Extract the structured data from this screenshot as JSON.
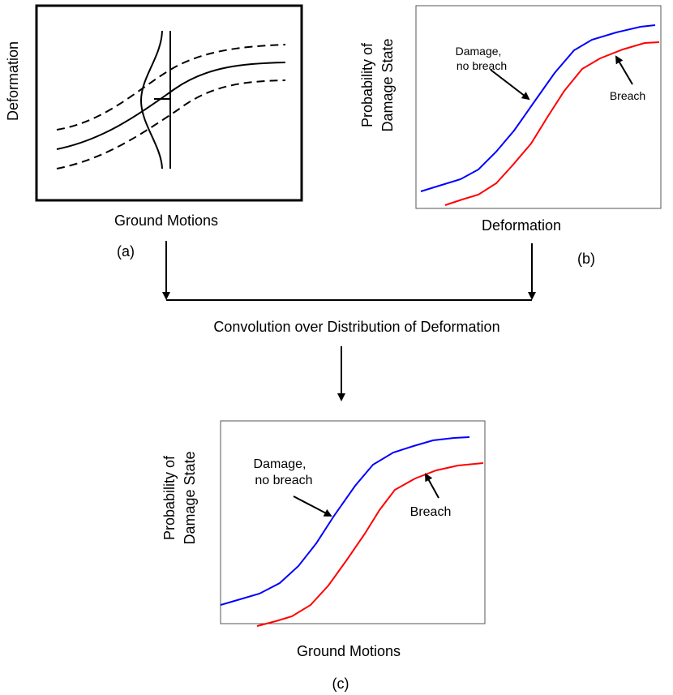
{
  "panel_a": {
    "ylabel": "Deformation",
    "xlabel": "Ground Motions",
    "tag": "(a)"
  },
  "panel_b": {
    "ylabel_line1": "Probability of",
    "ylabel_line2": "Damage State",
    "xlabel": "Deformation",
    "tag": "(b)",
    "annot_damage_line1": "Damage,",
    "annot_damage_line2": "no breach",
    "annot_breach": "Breach"
  },
  "convolution_label": "Convolution over Distribution of Deformation",
  "panel_c": {
    "ylabel_line1": "Probability of",
    "ylabel_line2": "Damage State",
    "xlabel": "Ground Motions",
    "tag": "(c)",
    "annot_damage_line1": "Damage,",
    "annot_damage_line2": "no breach",
    "annot_breach": "Breach"
  },
  "colors": {
    "damage_curve": "#0000ff",
    "breach_curve": "#ff0000",
    "ink": "#000000"
  }
}
